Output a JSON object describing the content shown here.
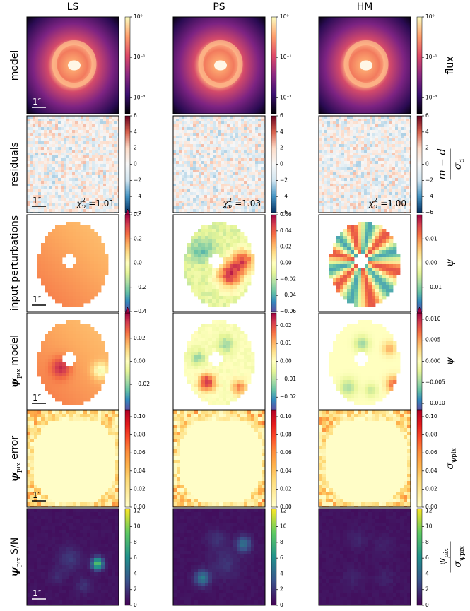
{
  "columns": [
    "LS",
    "PS",
    "HM"
  ],
  "scale_bar": "1″",
  "rows": [
    {
      "label": {
        "text": "model"
      },
      "cbar_label": {
        "text": "flux"
      },
      "cmap": "magma",
      "log": true,
      "colorbars": [
        {
          "clim": [
            0.004,
            1
          ],
          "extend": "neither",
          "ticks": [
            {
              "value": 1,
              "label": "10⁰"
            },
            {
              "value": 0.1,
              "label": "10⁻¹"
            },
            {
              "value": 0.01,
              "label": "10⁻²"
            }
          ]
        },
        {
          "clim": [
            0.004,
            1
          ],
          "extend": "neither",
          "ticks": [
            {
              "value": 1,
              "label": "10⁰"
            },
            {
              "value": 0.1,
              "label": "10⁻¹"
            },
            {
              "value": 0.01,
              "label": "10⁻²"
            }
          ]
        },
        {
          "clim": [
            0.004,
            1
          ],
          "extend": "neither",
          "ticks": [
            {
              "value": 1,
              "label": "10⁰"
            },
            {
              "value": 0.1,
              "label": "10⁻¹"
            },
            {
              "value": 0.01,
              "label": "10⁻²"
            }
          ]
        }
      ]
    },
    {
      "label": {
        "text": "residuals"
      },
      "cbar_label": {
        "num": {
          "text": "m − d"
        },
        "den": {
          "symbol": "σ",
          "sub": "d"
        }
      },
      "cmap": "RdBu_r",
      "log": false,
      "chi_labels": [
        {
          "symbol": "χ",
          "sup": "2",
          "sub": "ν",
          "text": " =1.01"
        },
        {
          "symbol": "χ",
          "sup": "2",
          "sub": "ν",
          "text": " =1.03"
        },
        {
          "symbol": "χ",
          "sup": "2",
          "sub": "ν",
          "text": " =1.00"
        }
      ],
      "colorbars": [
        {
          "clim": [
            -6,
            6
          ],
          "extend": "neither",
          "ticks": [
            {
              "value": 6,
              "label": "6"
            },
            {
              "value": 4,
              "label": "4"
            },
            {
              "value": 2,
              "label": "2"
            },
            {
              "value": 0,
              "label": "0"
            },
            {
              "value": -2,
              "label": "−2"
            },
            {
              "value": -4,
              "label": "−4"
            },
            {
              "value": -6,
              "label": "−6"
            }
          ]
        },
        {
          "clim": [
            -6,
            6
          ],
          "extend": "neither",
          "ticks": [
            {
              "value": 6,
              "label": "6"
            },
            {
              "value": 4,
              "label": "4"
            },
            {
              "value": 2,
              "label": "2"
            },
            {
              "value": 0,
              "label": "0"
            },
            {
              "value": -2,
              "label": "−2"
            },
            {
              "value": -4,
              "label": "−4"
            },
            {
              "value": -6,
              "label": "−6"
            }
          ]
        },
        {
          "clim": [
            -6,
            6
          ],
          "extend": "neither",
          "ticks": [
            {
              "value": 6,
              "label": "6"
            },
            {
              "value": 4,
              "label": "4"
            },
            {
              "value": 2,
              "label": "2"
            },
            {
              "value": 0,
              "label": "0"
            },
            {
              "value": -2,
              "label": "−2"
            },
            {
              "value": -4,
              "label": "−4"
            },
            {
              "value": -6,
              "label": "−6"
            }
          ]
        }
      ]
    },
    {
      "label": {
        "text": "input perturbations"
      },
      "cbar_label": {
        "symbol": "ψ"
      },
      "cmap": "Spectral_r",
      "log": false,
      "colorbars": [
        {
          "clim": [
            -0.4,
            0.4
          ],
          "extend": "max",
          "ticks": [
            {
              "value": 0.4,
              "label": "0.4"
            },
            {
              "value": 0.2,
              "label": "0.2"
            },
            {
              "value": 0,
              "label": "0.0"
            },
            {
              "value": -0.2,
              "label": "−0.2"
            },
            {
              "value": -0.4,
              "label": "−0.4"
            }
          ]
        },
        {
          "clim": [
            -0.06,
            0.06
          ],
          "extend": "neither",
          "ticks": [
            {
              "value": 0.06,
              "label": "0.06"
            },
            {
              "value": 0.04,
              "label": "0.04"
            },
            {
              "value": 0.02,
              "label": "0.02"
            },
            {
              "value": 0,
              "label": "0.00"
            },
            {
              "value": -0.02,
              "label": "−0.02"
            },
            {
              "value": -0.04,
              "label": "−0.04"
            },
            {
              "value": -0.06,
              "label": "−0.06"
            }
          ]
        },
        {
          "clim": [
            -0.02,
            0.02
          ],
          "extend": "neither",
          "ticks": [
            {
              "value": 0.01,
              "label": "0.01"
            },
            {
              "value": 0,
              "label": "0.00"
            },
            {
              "value": -0.01,
              "label": "−0.01"
            }
          ]
        }
      ]
    },
    {
      "label": {
        "symbol": "ψ",
        "sub": "pix",
        "text": " model"
      },
      "cbar_label": {
        "symbol": "ψ"
      },
      "cmap": "Spectral_r",
      "log": false,
      "colorbars": [
        {
          "clim": [
            -0.042,
            0.042
          ],
          "extend": "max",
          "ticks": [
            {
              "value": 0.02,
              "label": "0.02"
            },
            {
              "value": 0,
              "label": "0.00"
            },
            {
              "value": -0.02,
              "label": "−0.02"
            }
          ]
        },
        {
          "clim": [
            -0.027,
            0.027
          ],
          "extend": "neither",
          "ticks": [
            {
              "value": 0.02,
              "label": "0.02"
            },
            {
              "value": 0.01,
              "label": "0.01"
            },
            {
              "value": 0,
              "label": "0.00"
            },
            {
              "value": -0.01,
              "label": "−0.01"
            },
            {
              "value": -0.02,
              "label": "−0.02"
            }
          ]
        },
        {
          "clim": [
            -0.0115,
            0.0115
          ],
          "extend": "both",
          "ticks": [
            {
              "value": 0.01,
              "label": "0.010"
            },
            {
              "value": 0.005,
              "label": "0.005"
            },
            {
              "value": 0,
              "label": "0.000"
            },
            {
              "value": -0.005,
              "label": "−0.005"
            },
            {
              "value": -0.01,
              "label": "−0.010"
            }
          ]
        }
      ]
    },
    {
      "label": {
        "symbol": "ψ",
        "sub": "pix",
        "text": " error"
      },
      "cbar_label": {
        "symbol": "σ",
        "sub": "ψpix"
      },
      "cmap": "YlOrRd",
      "log": false,
      "colorbars": [
        {
          "clim": [
            0,
            0.107
          ],
          "extend": "neither",
          "ticks": [
            {
              "value": 0.1,
              "label": "0.10"
            },
            {
              "value": 0.08,
              "label": "0.08"
            },
            {
              "value": 0.06,
              "label": "0.06"
            },
            {
              "value": 0.04,
              "label": "0.04"
            },
            {
              "value": 0.02,
              "label": "0.02"
            },
            {
              "value": 0,
              "label": "0.00"
            }
          ]
        },
        {
          "clim": [
            0,
            0.107
          ],
          "extend": "neither",
          "ticks": [
            {
              "value": 0.1,
              "label": "0.10"
            },
            {
              "value": 0.08,
              "label": "0.08"
            },
            {
              "value": 0.06,
              "label": "0.06"
            },
            {
              "value": 0.04,
              "label": "0.04"
            },
            {
              "value": 0.02,
              "label": "0.02"
            },
            {
              "value": 0,
              "label": "0.00"
            }
          ]
        },
        {
          "clim": [
            0,
            0.107
          ],
          "extend": "neither",
          "ticks": [
            {
              "value": 0.1,
              "label": "0.10"
            },
            {
              "value": 0.08,
              "label": "0.08"
            },
            {
              "value": 0.06,
              "label": "0.06"
            },
            {
              "value": 0.04,
              "label": "0.04"
            },
            {
              "value": 0.02,
              "label": "0.02"
            },
            {
              "value": 0,
              "label": "0.00"
            }
          ]
        }
      ]
    },
    {
      "label": {
        "symbol": "ψ",
        "sub": "pix",
        "text": " S/N"
      },
      "cbar_label": {
        "num": {
          "symbol": "ψ",
          "sub": "pix"
        },
        "den": {
          "symbol": "σ",
          "sub": "ψpix"
        }
      },
      "cmap": "viridis",
      "log": false,
      "colorbars": [
        {
          "clim": [
            0,
            12.3
          ],
          "extend": "neither",
          "ticks": [
            {
              "value": 12,
              "label": "12"
            },
            {
              "value": 10,
              "label": "10"
            },
            {
              "value": 8,
              "label": "8"
            },
            {
              "value": 6,
              "label": "6"
            },
            {
              "value": 4,
              "label": "4"
            },
            {
              "value": 2,
              "label": "2"
            },
            {
              "value": 0,
              "label": "0"
            }
          ]
        },
        {
          "clim": [
            0,
            12.3
          ],
          "extend": "neither",
          "ticks": [
            {
              "value": 12,
              "label": "12"
            },
            {
              "value": 10,
              "label": "10"
            },
            {
              "value": 8,
              "label": "8"
            },
            {
              "value": 6,
              "label": "6"
            },
            {
              "value": 4,
              "label": "4"
            },
            {
              "value": 2,
              "label": "2"
            },
            {
              "value": 0,
              "label": "0"
            }
          ]
        },
        {
          "clim": [
            0,
            12.3
          ],
          "extend": "neither",
          "ticks": [
            {
              "value": 12,
              "label": "12"
            },
            {
              "value": 10,
              "label": "10"
            },
            {
              "value": 8,
              "label": "8"
            },
            {
              "value": 6,
              "label": "6"
            },
            {
              "value": 4,
              "label": "4"
            },
            {
              "value": 2,
              "label": "2"
            },
            {
              "value": 0,
              "label": "0"
            }
          ]
        }
      ]
    }
  ]
}
